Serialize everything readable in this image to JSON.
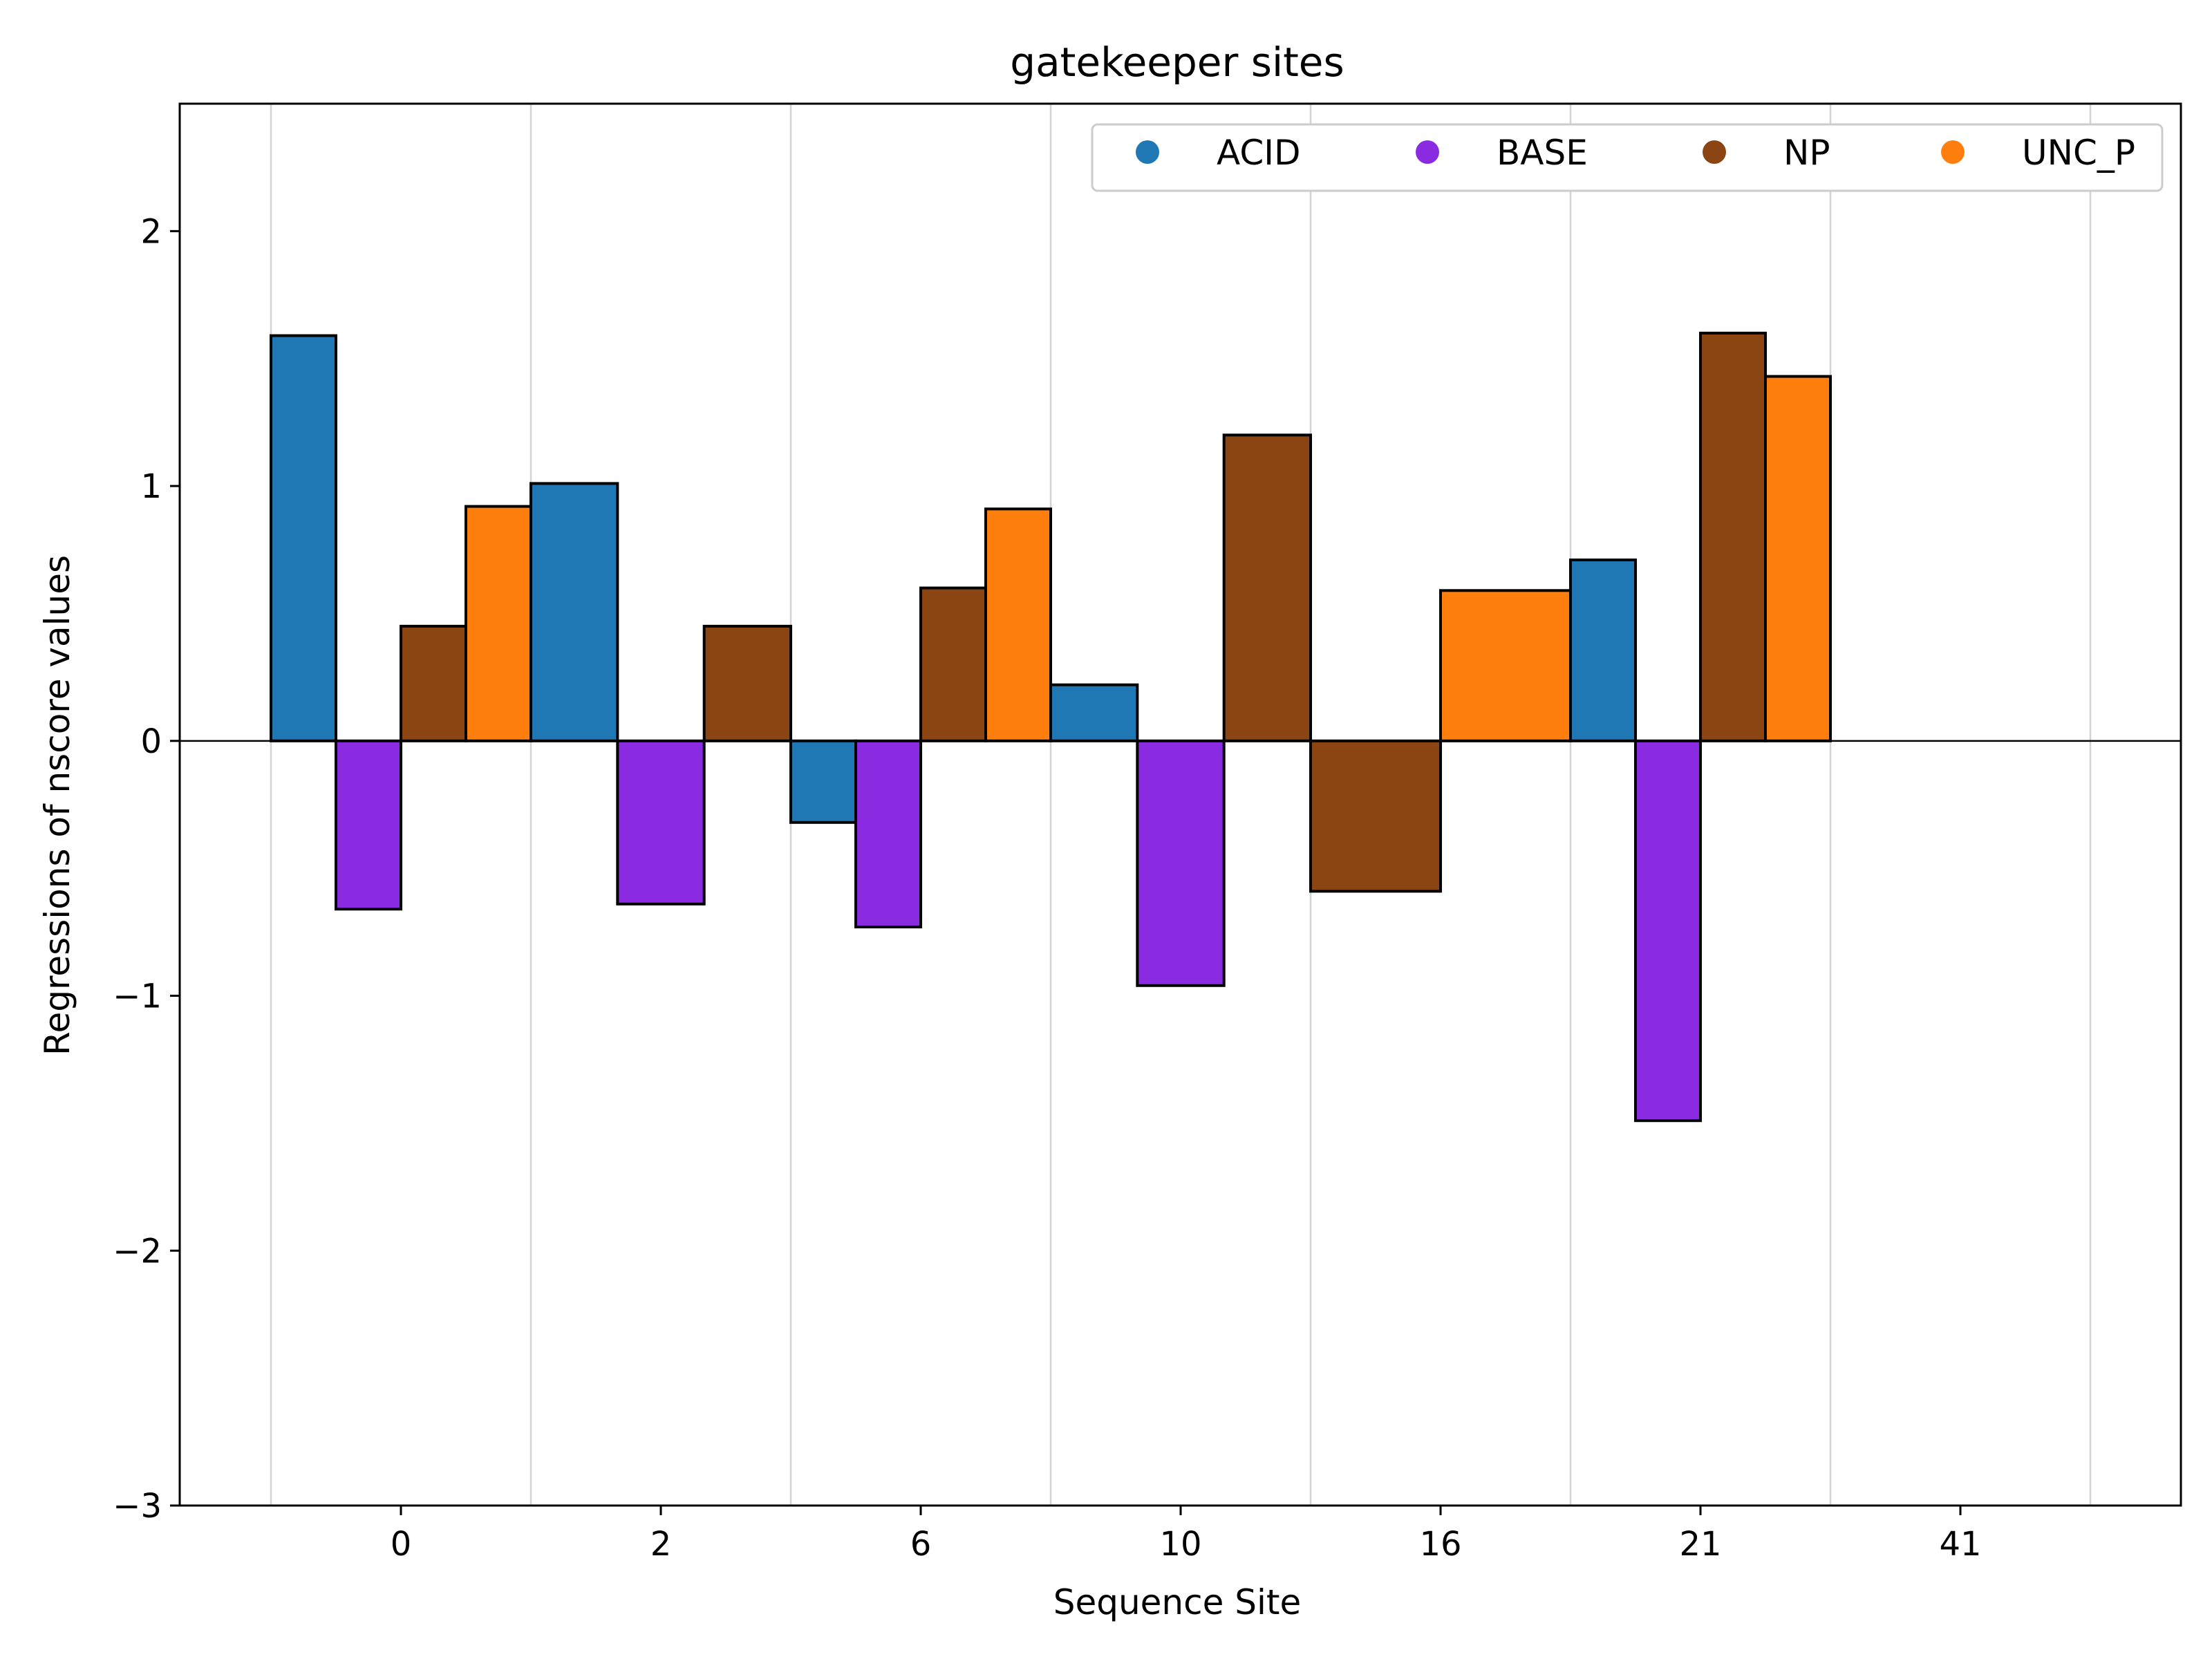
{
  "chart_data": {
    "type": "bar",
    "title": "gatekeeper sites",
    "xlabel": "Sequence Site",
    "ylabel": "Regressions of nscore values",
    "ylim": [
      -3,
      2.5
    ],
    "yticks": [
      -3,
      -2,
      -1,
      0,
      1,
      2
    ],
    "ytick_labels": [
      "−3",
      "−2",
      "−1",
      "0",
      "1",
      "2"
    ],
    "categories": [
      "0",
      "2",
      "6",
      "10",
      "16",
      "21",
      "41"
    ],
    "grid": "vertical",
    "legend": "top-right",
    "series": [
      {
        "name": "ACID",
        "color": "#1f77b4",
        "values": [
          1.59,
          1.01,
          -0.32,
          0.22,
          null,
          0.71,
          null
        ]
      },
      {
        "name": "BASE",
        "color": "#8a2be2",
        "values": [
          -0.66,
          -0.64,
          -0.73,
          -0.96,
          null,
          -1.49,
          null
        ]
      },
      {
        "name": "NP",
        "color": "#8b4513",
        "values": [
          0.45,
          0.45,
          0.6,
          1.2,
          -0.59,
          1.6,
          null
        ]
      },
      {
        "name": "UNC_P",
        "color": "#ff7f0e",
        "values": [
          0.92,
          null,
          0.91,
          null,
          0.59,
          1.43,
          null
        ]
      }
    ]
  }
}
